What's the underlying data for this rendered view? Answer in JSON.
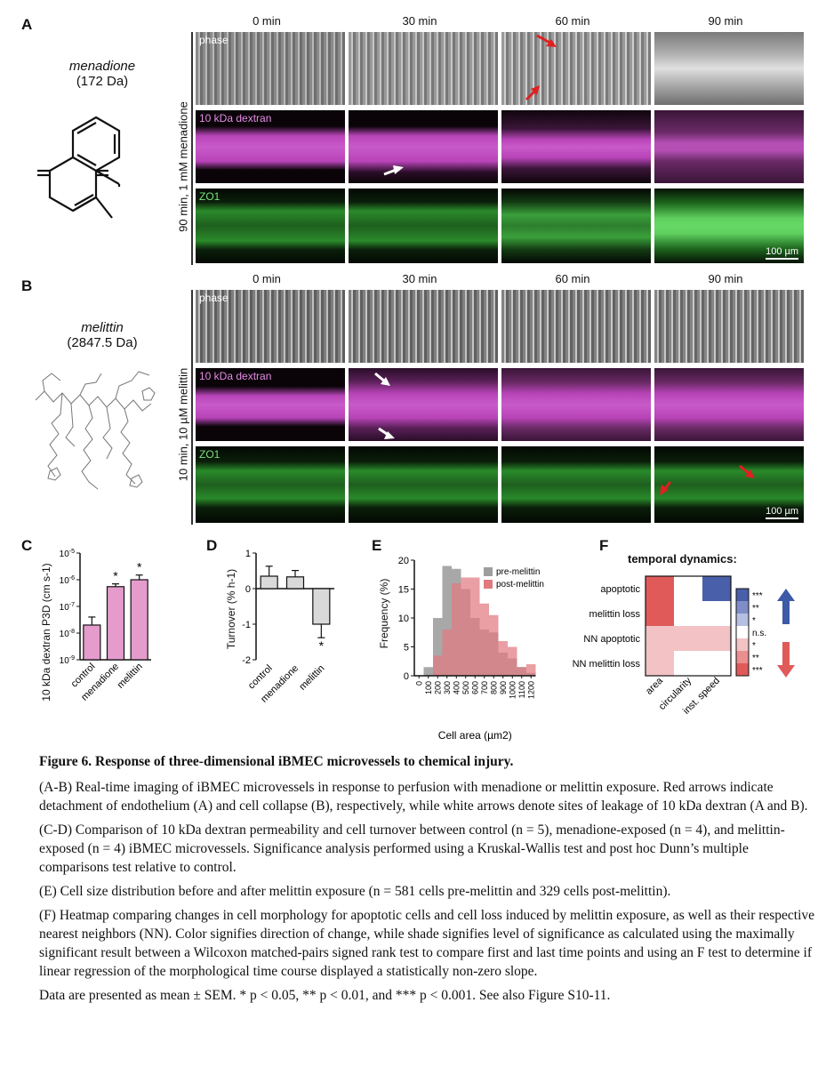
{
  "panelA": {
    "letter": "A",
    "compound_name": "menadione",
    "compound_mass": "(172 Da)",
    "row_title": "90 min, 1 mM menadione",
    "timepoints": [
      "0 min",
      "30 min",
      "60 min",
      "90 min"
    ],
    "row_labels": [
      "phase",
      "10 kDa dextran",
      "ZO1"
    ],
    "scalebar": "100 µm"
  },
  "panelB": {
    "letter": "B",
    "compound_name": "melittin",
    "compound_mass": "(2847.5 Da)",
    "row_title": "10 min, 10 µM melittin",
    "timepoints": [
      "0 min",
      "30 min",
      "60 min",
      "90 min"
    ],
    "row_labels": [
      "phase",
      "10 kDa dextran",
      "ZO1"
    ],
    "scalebar": "100 µm"
  },
  "panelC": {
    "letter": "C",
    "chart_data": {
      "type": "bar",
      "categories": [
        "control",
        "menadione",
        "melittin"
      ],
      "values": [
        2e-08,
        5.5e-07,
        1e-06
      ],
      "errors": [
        2e-08,
        1.5e-07,
        5e-07
      ],
      "significance": [
        "",
        "*",
        "*"
      ],
      "ylabel": "10 kDa dextran P3D (cm s-1)",
      "yscale": "log",
      "ylim": [
        1e-09,
        1e-05
      ],
      "ytick_labels": [
        "10-5",
        "10-6",
        "10-7",
        "10-8",
        "10-9"
      ],
      "color": "#e59ccc"
    }
  },
  "panelD": {
    "letter": "D",
    "chart_data": {
      "type": "bar",
      "categories": [
        "control",
        "menadione",
        "melittin"
      ],
      "values": [
        0.35,
        0.33,
        -1.0
      ],
      "errors": [
        0.28,
        0.18,
        0.38
      ],
      "significance": [
        "",
        "",
        "*"
      ],
      "ylabel": "Turnover (% h-1)",
      "ylim": [
        -2,
        1
      ],
      "yticks": [
        1,
        0,
        -1,
        -2
      ],
      "color": "#d9d9d9"
    }
  },
  "panelE": {
    "letter": "E",
    "chart_data": {
      "type": "bar",
      "x": [
        0,
        100,
        200,
        300,
        400,
        500,
        600,
        700,
        800,
        900,
        1000,
        1100,
        1200
      ],
      "xtick_labels": [
        "0",
        "100",
        "200",
        "300",
        "400",
        "500",
        "600",
        "700",
        "800",
        "900",
        "1000",
        "1100",
        "1200"
      ],
      "series": [
        {
          "name": "pre-melittin",
          "color": "#9e9e9e",
          "values": [
            0,
            1.5,
            10,
            19,
            18.5,
            15,
            10,
            8,
            7.5,
            4,
            3,
            1.5,
            0.5
          ]
        },
        {
          "name": "post-melittin",
          "color": "#e07a7f",
          "values": [
            0,
            0,
            3.5,
            8,
            16,
            17,
            17,
            12.5,
            10.5,
            6,
            5,
            1.5,
            2
          ]
        }
      ],
      "xlabel": "Cell area (µm2)",
      "ylabel": "Frequency (%)",
      "ylim": [
        0,
        20
      ],
      "yticks": [
        0,
        5,
        10,
        15,
        20
      ],
      "legend": "top-right"
    }
  },
  "panelF": {
    "letter": "F",
    "chart_data": {
      "type": "heatmap",
      "title": "temporal dynamics:",
      "rows": [
        "apoptotic",
        "melittin loss",
        "NN apoptotic",
        "NN melittin loss"
      ],
      "columns": [
        "area",
        "circularity",
        "inst. speed"
      ],
      "values": [
        [
          -2,
          0,
          2
        ],
        [
          -2,
          0,
          0
        ],
        [
          -1,
          -1,
          -1
        ],
        [
          -1,
          0,
          0
        ]
      ],
      "colorbar_labels": [
        "***",
        "**",
        "*",
        "n.s.",
        "*",
        "**",
        "***"
      ],
      "colors": {
        "up": "#4a5faa",
        "down": "#e05a5a",
        "neutral": "#ffffff"
      }
    }
  },
  "caption": {
    "title": "Figure 6.  Response of three-dimensional iBMEC microvessels to chemical injury.",
    "paragraphs": [
      "(A-B) Real-time imaging of iBMEC microvessels in response to perfusion with menadione or melittin exposure.  Red arrows indicate detachment of endothelium (A) and cell collapse (B), respectively, while white arrows denote sites of leakage of 10 kDa dextran (A and B).",
      "(C-D) Comparison of 10 kDa dextran permeability and cell turnover between control (n = 5), menadione-exposed (n = 4), and melittin-exposed (n = 4) iBMEC microvessels.  Significance analysis performed using a Kruskal-Wallis test and post hoc Dunn’s multiple comparisons test relative to control.",
      "(E) Cell size distribution before and after melittin exposure (n = 581 cells pre-melittin and 329 cells post-melittin).",
      "(F) Heatmap comparing changes in cell morphology for apoptotic cells and cell loss induced by melittin exposure, as well as their respective nearest neighbors (NN).  Color signifies direction of change, while shade signifies level of significance as calculated using the maximally significant result between a Wilcoxon matched-pairs signed rank test to compare first and last time points and using an F test to determine if linear regression of the morphological time course displayed a statistically non-zero slope.",
      "Data are presented as mean ± SEM. * p < 0.05, ** p < 0.01, and *** p < 0.001.  See also Figure S10-11."
    ]
  }
}
